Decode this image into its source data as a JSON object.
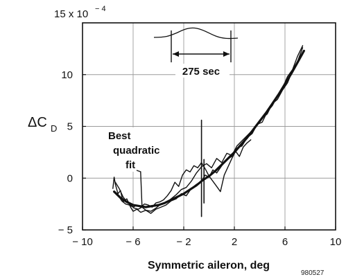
{
  "chart_data": {
    "type": "line",
    "title": "",
    "xlabel": "Symmetric aileron, deg",
    "ylabel": {
      "main": "ΔC",
      "sub": "D"
    },
    "y_scale_label": {
      "base": "15 x 10",
      "exponent": "− 4"
    },
    "xlim": [
      -10,
      10
    ],
    "ylim": [
      -5,
      15
    ],
    "x_ticks": [
      -10,
      -6,
      -2,
      2,
      6,
      10
    ],
    "x_tick_labels": [
      "− 10",
      "− 6",
      "− 2",
      "2",
      "6",
      "10"
    ],
    "y_ticks": [
      -5,
      0,
      5,
      10
    ],
    "y_tick_labels": [
      "− 5",
      "0",
      "5",
      "10"
    ],
    "grid": true,
    "annotations": [
      {
        "lines": [
          "Best",
          "quadratic",
          "fit"
        ],
        "target": [
          -5.3,
          -2.7
        ]
      },
      {
        "text": "275 sec",
        "span": [
          -3,
          1.6
        ]
      }
    ],
    "figure_id": "980527",
    "series": [
      {
        "role": "fit",
        "x": [
          -7.5,
          -7,
          -6.5,
          -6,
          -5.5,
          -5,
          -4.5,
          -4,
          -3.5,
          -3,
          -2.5,
          -2,
          -1.5,
          -1,
          -0.5,
          0,
          0.5,
          1,
          1.5,
          2,
          2.5,
          3,
          3.5,
          4,
          4.5,
          5,
          5.5,
          6,
          6.5,
          7,
          7.5
        ],
        "values": [
          -1.3,
          -1.9,
          -2.3,
          -2.6,
          -2.7,
          -2.8,
          -2.7,
          -2.6,
          -2.4,
          -2.1,
          -1.8,
          -1.5,
          -1.1,
          -0.7,
          -0.2,
          0.2,
          0.7,
          1.3,
          1.9,
          2.5,
          3.2,
          3.9,
          4.7,
          5.5,
          6.3,
          7.2,
          8.1,
          9.1,
          10.1,
          11.2,
          12.3
        ]
      },
      {
        "role": "measured",
        "x": [
          -7.6,
          -7.5,
          -7.4,
          -7.2,
          -7,
          -6.8,
          -6.5,
          -6.2,
          -6,
          -5.7,
          -5.4,
          -5,
          -4.6,
          -4.2,
          -3.8,
          -3.4,
          -3,
          -2.6,
          -2.2,
          -1.8,
          -1.4,
          -1,
          -0.6,
          -0.3,
          0,
          0.3,
          0.6,
          1,
          1.4,
          1.8,
          2.2,
          2.6,
          3,
          3.4,
          3.8,
          4.2,
          4.6,
          5,
          5.4,
          5.8,
          6.2,
          6.6,
          7,
          7.4
        ],
        "values": [
          -1.0,
          0.1,
          -0.6,
          -1.5,
          -1.2,
          -2.3,
          -2.0,
          -2.8,
          -3.2,
          -3.0,
          -3.3,
          -3.1,
          -3.4,
          -3.0,
          -2.8,
          -2.6,
          -2.2,
          -2.0,
          -1.5,
          -1.7,
          -1.0,
          -0.6,
          -0.3,
          0.3,
          0.1,
          0.8,
          0.5,
          1.2,
          1.8,
          2.1,
          2.9,
          3.1,
          3.9,
          4.3,
          5.2,
          5.4,
          6.4,
          7.0,
          7.9,
          8.7,
          9.8,
          10.5,
          11.8,
          12.8
        ]
      },
      {
        "role": "measured",
        "x": [
          -7.4,
          -7.1,
          -6.8,
          -6.5,
          -6.2,
          -5.9,
          -5.6,
          -5.3,
          -5,
          -4.6,
          -4.2,
          -3.8,
          -3.4,
          -3,
          -2.6,
          -2.2,
          -1.8,
          -1.4,
          -1,
          -0.6,
          -0.2,
          0.2,
          0.6,
          1,
          1.4,
          1.8,
          2.2,
          2.6,
          3,
          3.4,
          3.8,
          4.2,
          4.6,
          5,
          5.4,
          5.8,
          6.2,
          6.6,
          7,
          7.4
        ],
        "values": [
          -0.4,
          -1.0,
          -1.8,
          -2.3,
          -2.6,
          -2.9,
          -3.0,
          -2.8,
          -3.1,
          -3.2,
          -2.9,
          -2.5,
          -2.4,
          -2.0,
          -1.6,
          -1.1,
          -0.9,
          -0.3,
          0.5,
          1.1,
          1.4,
          1.0,
          1.9,
          1.5,
          2.4,
          2.2,
          3.1,
          3.6,
          4.1,
          4.6,
          5.1,
          5.8,
          6.2,
          7.2,
          7.6,
          8.5,
          9.2,
          10.4,
          11.3,
          12.6
        ]
      },
      {
        "role": "measured",
        "x": [
          -7.2,
          -6.9,
          -6.6,
          -6.3,
          -6,
          -5.7,
          -5.4,
          -5.1,
          -4.8,
          -4.5,
          -4.2,
          -3.9,
          -3.6,
          -3.3,
          -3,
          -2.7,
          -2.4,
          -2.1,
          -1.8,
          -1.5,
          -1.2,
          -0.9,
          -0.6,
          -0.3,
          0,
          0.3,
          0.6,
          0.9,
          1.2,
          1.5,
          1.8,
          2.1,
          2.4,
          2.7,
          3,
          3.3
        ],
        "values": [
          -1.6,
          -2.2,
          -2.5,
          -2.6,
          -2.8,
          -2.6,
          -2.8,
          -2.5,
          -2.6,
          -2.8,
          -2.4,
          -2.3,
          -2.1,
          -1.7,
          -1.2,
          -0.4,
          -0.8,
          0.3,
          0.8,
          0.6,
          1.2,
          1.0,
          1.5,
          0.9,
          0.2,
          -0.3,
          -0.8,
          -1.3,
          0.3,
          1.1,
          1.9,
          2.6,
          2.1,
          3.0,
          3.4,
          3.7
        ]
      },
      {
        "role": "spike",
        "x": [
          -0.6,
          -0.6
        ],
        "values": [
          -3.7,
          5.6
        ]
      },
      {
        "role": "spike",
        "x": [
          -0.4,
          -0.4
        ],
        "values": [
          -2.4,
          1.8
        ]
      }
    ]
  }
}
